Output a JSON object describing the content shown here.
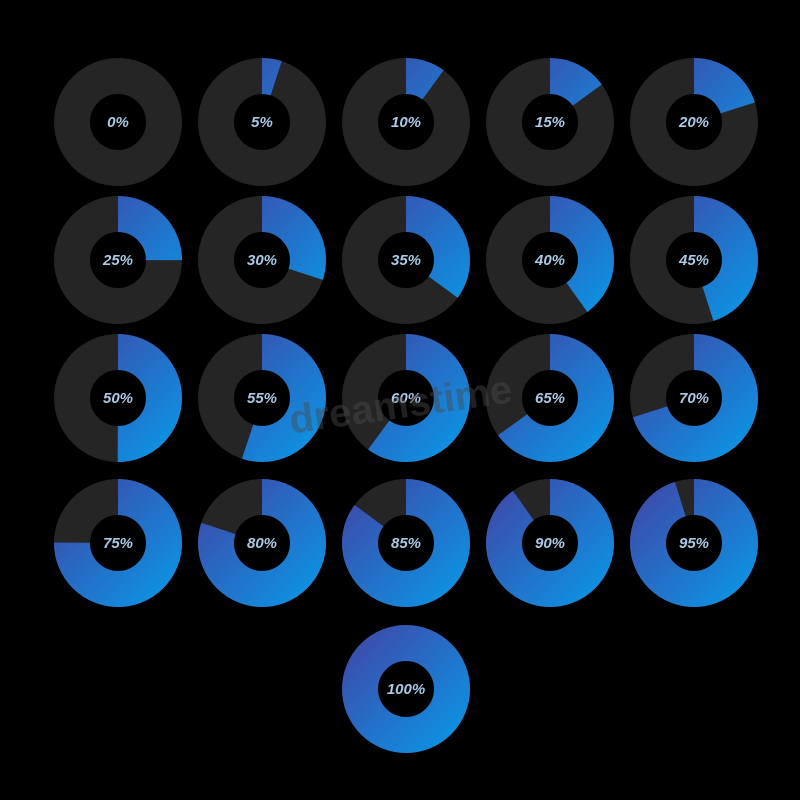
{
  "colors": {
    "background": "#000000",
    "track": "#252525",
    "fill_start": "#0f8fe0",
    "fill_end": "#3a4fae",
    "label": "#a9c9e6",
    "watermark": "#4a4a4a"
  },
  "indicators": [
    {
      "label": "0%",
      "progress": 0
    },
    {
      "label": "5%",
      "progress": 0.05
    },
    {
      "label": "10%",
      "progress": 0.1
    },
    {
      "label": "15%",
      "progress": 0.15
    },
    {
      "label": "20%",
      "progress": 0.2
    },
    {
      "label": "25%",
      "progress": 0.25
    },
    {
      "label": "30%",
      "progress": 0.3
    },
    {
      "label": "35%",
      "progress": 0.35
    },
    {
      "label": "40%",
      "progress": 0.4
    },
    {
      "label": "45%",
      "progress": 0.45
    },
    {
      "label": "50%",
      "progress": 0.5
    },
    {
      "label": "55%",
      "progress": 0.55
    },
    {
      "label": "60%",
      "progress": 0.6
    },
    {
      "label": "65%",
      "progress": 0.65
    },
    {
      "label": "70%",
      "progress": 0.7
    },
    {
      "label": "75%",
      "progress": 0.75
    },
    {
      "label": "80%",
      "progress": 0.8
    },
    {
      "label": "85%",
      "progress": 0.85
    },
    {
      "label": "90%",
      "progress": 0.9
    },
    {
      "label": "95%",
      "progress": 0.95
    },
    {
      "label": "100%",
      "progress": 1.0
    }
  ],
  "watermark": {
    "text": "dreamstime"
  }
}
